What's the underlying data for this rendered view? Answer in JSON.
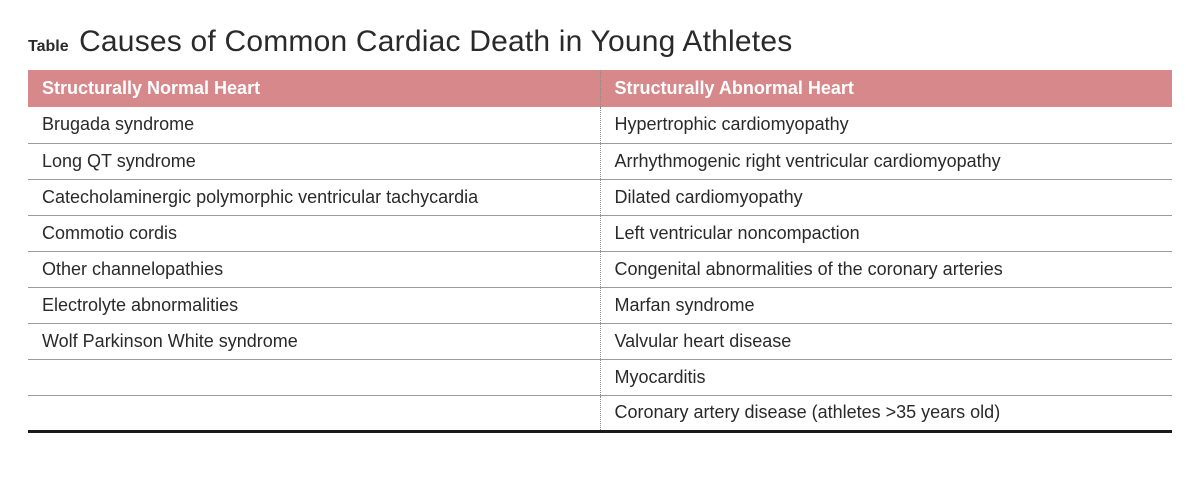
{
  "title_label": "Table",
  "title_text": "Causes of Common Cardiac Death in Young Athletes",
  "table": {
    "header_bg": "#d6888a",
    "header_fg": "#ffffff",
    "row_border": "#9c9c9c",
    "bottom_border": "#1a1a1a",
    "columns": [
      "Structurally Normal Heart",
      "Structurally Abnormal Heart"
    ],
    "rows": [
      [
        "Brugada syndrome",
        "Hypertrophic cardiomyopathy"
      ],
      [
        "Long QT syndrome",
        "Arrhythmogenic right ventricular cardiomyopathy"
      ],
      [
        "Catecholaminergic polymorphic ventricular tachycardia",
        "Dilated cardiomyopathy"
      ],
      [
        "Commotio cordis",
        "Left ventricular noncompaction"
      ],
      [
        "Other channelopathies",
        "Congenital abnormalities of the coronary arteries"
      ],
      [
        "Electrolyte abnormalities",
        "Marfan syndrome"
      ],
      [
        "Wolf Parkinson White syndrome",
        "Valvular heart disease"
      ],
      [
        "",
        "Myocarditis"
      ],
      [
        "",
        "Coronary artery disease (athletes >35 years old)"
      ]
    ]
  }
}
